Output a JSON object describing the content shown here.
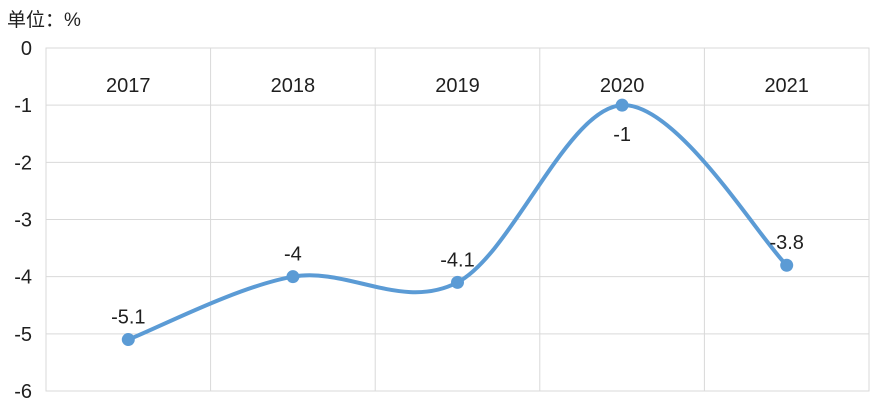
{
  "chart_data": {
    "type": "line",
    "title": "",
    "unit_label": "单位：%",
    "categories": [
      "2017",
      "2018",
      "2019",
      "2020",
      "2021"
    ],
    "series": [
      {
        "name": "",
        "values": [
          -5.1,
          -4,
          -4.1,
          -1,
          -3.8
        ],
        "labels": [
          "-5.1",
          "-4",
          "-4.1",
          "-1",
          "-3.8"
        ],
        "label_positions": [
          "above",
          "above",
          "above",
          "below",
          "above"
        ]
      }
    ],
    "xlabel": "",
    "ylabel": "",
    "ylim": [
      -6,
      0
    ],
    "y_ticks": [
      0,
      -1,
      -2,
      -3,
      -4,
      -5,
      -6
    ],
    "grid": true,
    "smooth": true,
    "legend": false,
    "line_color": "#5B9BD5",
    "marker_color": "#5B9BD5",
    "gridline_color": "#D9D9D9",
    "text_color": "#1f1f1f",
    "background_color": "#FFFFFF"
  }
}
